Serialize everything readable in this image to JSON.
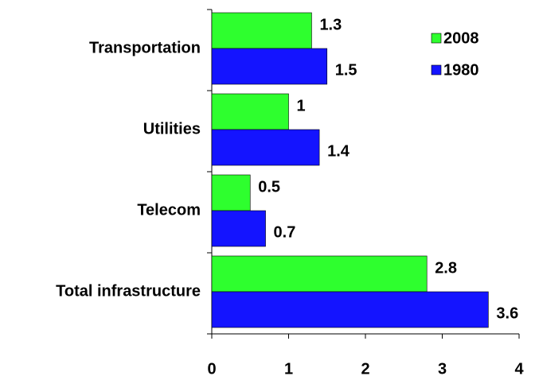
{
  "chart_data": {
    "type": "bar",
    "orientation": "horizontal",
    "categories": [
      "Transportation",
      "Utilities",
      "Telecom",
      "Total infrastructure"
    ],
    "series": [
      {
        "name": "2008",
        "color": "#2eff2e",
        "values": [
          1.3,
          1,
          0.5,
          2.8
        ]
      },
      {
        "name": "1980",
        "color": "#1414ff",
        "values": [
          1.5,
          1.4,
          0.7,
          3.6
        ]
      }
    ],
    "xlim": [
      0,
      4
    ],
    "xticks": [
      0,
      1,
      2,
      3,
      4
    ],
    "legend": "upper right"
  }
}
